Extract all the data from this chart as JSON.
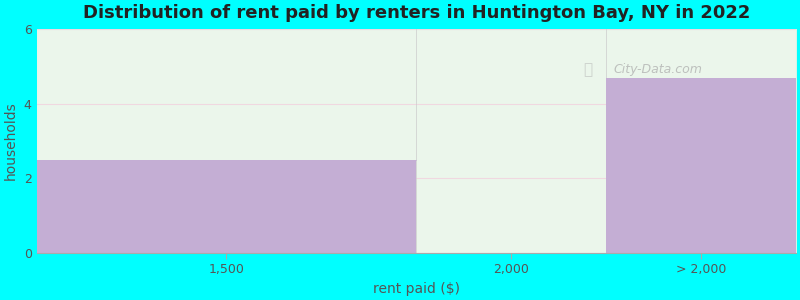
{
  "title": "Distribution of rent paid by renters in Huntington Bay, NY in 2022",
  "categories": [
    "1,500",
    "2,000",
    "> 2,000"
  ],
  "values": [
    2.5,
    0,
    4.7
  ],
  "bar_color": "#c4aed4",
  "background_color": "#00ffff",
  "plot_bg_color": "#ffffff",
  "grid_color": "#f0d8e0",
  "fill_bg_color": "#e8f5e8",
  "xlabel": "rent paid ($)",
  "ylabel": "households",
  "ylim": [
    0,
    6
  ],
  "yticks": [
    0,
    2,
    4,
    6
  ],
  "title_fontsize": 13,
  "label_fontsize": 10,
  "tick_fontsize": 9,
  "watermark": "City-Data.com",
  "bin_edges": [
    0,
    2,
    3,
    4
  ],
  "tick_centers": [
    1,
    2.5,
    3.5
  ]
}
